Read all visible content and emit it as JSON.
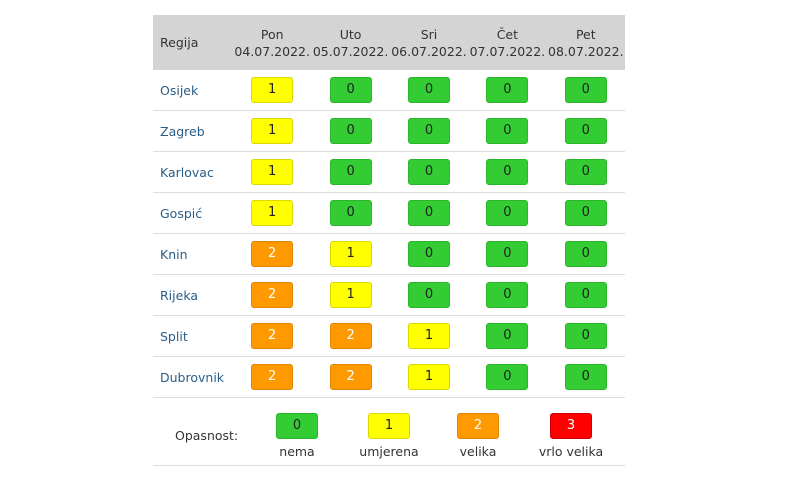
{
  "header": {
    "region_label": "Regija",
    "days": [
      {
        "day": "Pon",
        "date": "04.07.2022."
      },
      {
        "day": "Uto",
        "date": "05.07.2022."
      },
      {
        "day": "Sri",
        "date": "06.07.2022."
      },
      {
        "day": "Čet",
        "date": "07.07.2022."
      },
      {
        "day": "Pet",
        "date": "08.07.2022."
      }
    ]
  },
  "rows": [
    {
      "region": "Osijek",
      "values": [
        "1",
        "0",
        "0",
        "0",
        "0"
      ]
    },
    {
      "region": "Zagreb",
      "values": [
        "1",
        "0",
        "0",
        "0",
        "0"
      ]
    },
    {
      "region": "Karlovac",
      "values": [
        "1",
        "0",
        "0",
        "0",
        "0"
      ]
    },
    {
      "region": "Gospić",
      "values": [
        "1",
        "0",
        "0",
        "0",
        "0"
      ]
    },
    {
      "region": "Knin",
      "values": [
        "2",
        "1",
        "0",
        "0",
        "0"
      ]
    },
    {
      "region": "Rijeka",
      "values": [
        "2",
        "1",
        "0",
        "0",
        "0"
      ]
    },
    {
      "region": "Split",
      "values": [
        "2",
        "2",
        "1",
        "0",
        "0"
      ]
    },
    {
      "region": "Dubrovnik",
      "values": [
        "2",
        "2",
        "1",
        "0",
        "0"
      ]
    }
  ],
  "legend": {
    "label": "Opasnost:",
    "items": [
      {
        "value": "0",
        "text": "nema"
      },
      {
        "value": "1",
        "text": "umjerena"
      },
      {
        "value": "2",
        "text": "velika"
      },
      {
        "value": "3",
        "text": "vrlo velika"
      }
    ]
  },
  "colors": {
    "level_0": "#33cc33",
    "level_1": "#ffff00",
    "level_2": "#ff9900",
    "level_3": "#ff0000",
    "header_bg": "#d4d4d4",
    "link": "#2a5d86"
  }
}
